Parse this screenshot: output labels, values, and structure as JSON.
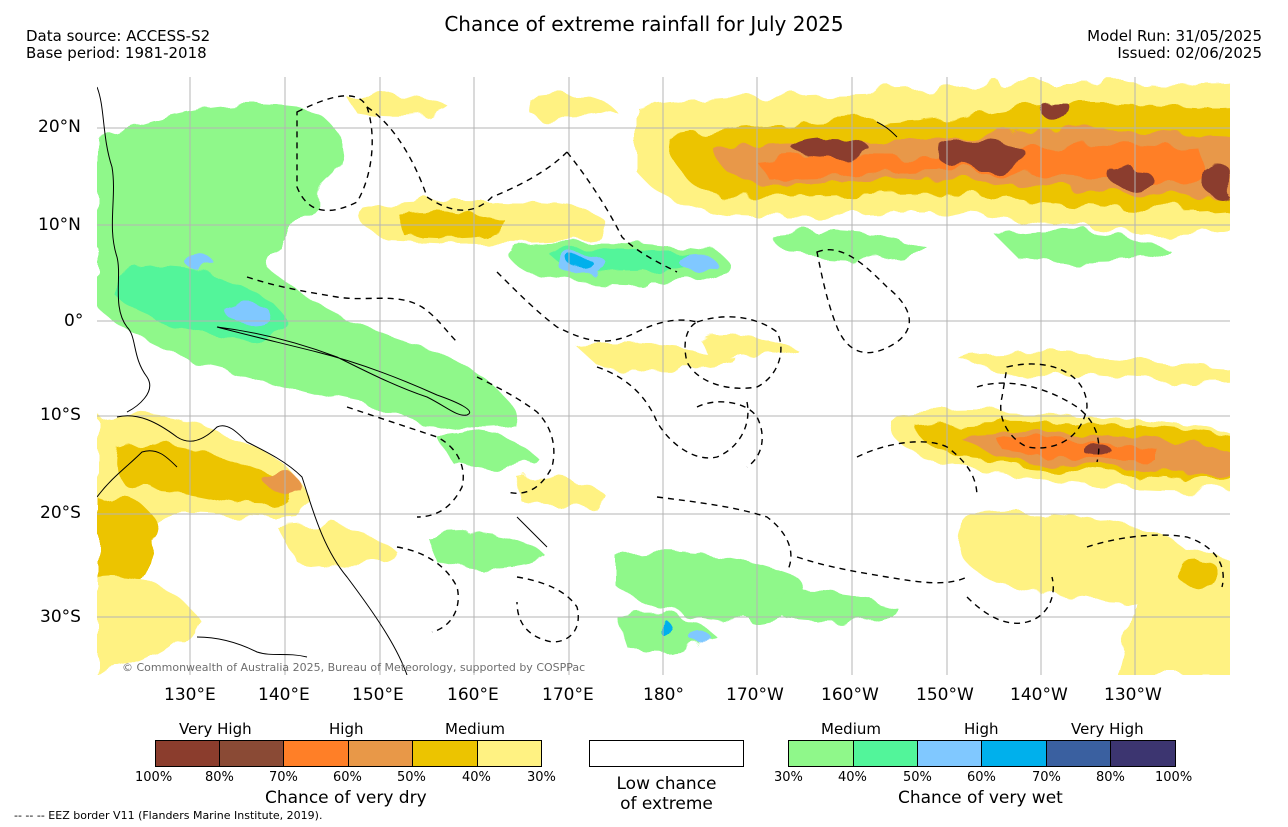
{
  "header": {
    "title": "Chance of extreme rainfall for July 2025",
    "source_line": "Data source: ACCESS-S2",
    "base_line": "Base period: 1981-2018",
    "model_run": "Model Run: 31/05/2025",
    "issued": "Issued: 02/06/2025"
  },
  "map": {
    "copyright": "© Commonwealth of Australia 2025, Bureau of Meteorology, supported by COSPPac",
    "lat_labels": [
      "20°N",
      "10°N",
      "0°",
      "10°S",
      "20°S",
      "30°S"
    ],
    "lon_labels": [
      "130°E",
      "140°E",
      "150°E",
      "160°E",
      "170°E",
      "180°",
      "170°W",
      "160°W",
      "150°W",
      "140°W",
      "130°W"
    ]
  },
  "legend": {
    "dry": {
      "category_labels": [
        "Very High",
        "High",
        "Medium"
      ],
      "ticks": [
        "100%",
        "80%",
        "70%",
        "60%",
        "50%",
        "40%",
        "30%"
      ],
      "colors": [
        "#8b3d2d",
        "#8a4a35",
        "#ff7f27",
        "#e89848",
        "#ecc400",
        "#fff282"
      ],
      "caption": "Chance of very dry"
    },
    "neutral": {
      "caption_line1": "Low chance",
      "caption_line2": "of extreme"
    },
    "wet": {
      "category_labels": [
        "Medium",
        "High",
        "Very High"
      ],
      "ticks": [
        "30%",
        "40%",
        "50%",
        "60%",
        "70%",
        "80%",
        "100%"
      ],
      "colors": [
        "#8ff88a",
        "#52f59a",
        "#80c8ff",
        "#00b0ec",
        "#3a60a0",
        "#3c3570"
      ],
      "caption": "Chance of very wet"
    }
  },
  "footer": {
    "eez_note": "--  --  -- EEZ border V11 (Flanders Marine Institute, 2019)."
  }
}
